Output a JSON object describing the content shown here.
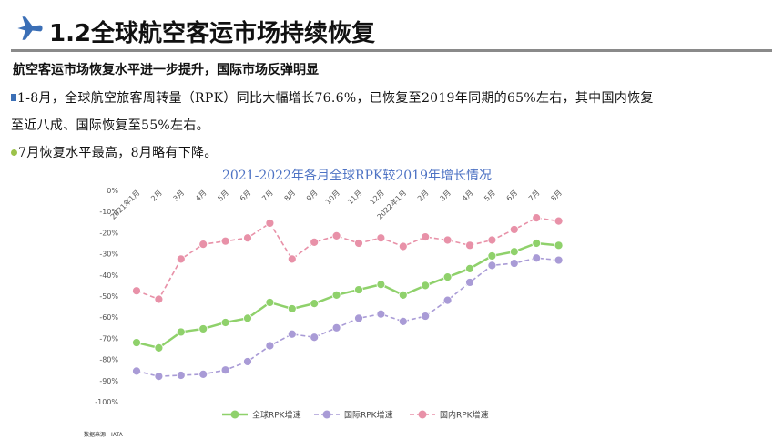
{
  "header": {
    "title": "1.2全球航空客运市场持续恢复",
    "icon": "airplane-icon",
    "accent": "#3b6fb6"
  },
  "subtitle": "航空客运市场恢复水平进一步提升，国际市场反弹明显",
  "paragraphs": [
    {
      "line1": "1-8月，全球航空旅客周转量（RPK）同比大幅增长76.6%，已恢复至2019年同期的65%左右，其中国内恢复",
      "line2": "至近八成、国际恢复至55%左右。"
    },
    {
      "line1": "7月恢复水平最高，8月略有下降。"
    }
  ],
  "source": "数据来源：IATA",
  "chart_data": {
    "type": "line",
    "title": "2021-2022年各月全球RPK较2019年增长情况",
    "categories": [
      "2021年1月",
      "2月",
      "3月",
      "4月",
      "5月",
      "6月",
      "7月",
      "8月",
      "9月",
      "10月",
      "11月",
      "12月",
      "2022年1月",
      "2月",
      "3月",
      "4月",
      "5月",
      "6月",
      "7月",
      "8月"
    ],
    "yticks": [
      "0%",
      "-10%",
      "-20%",
      "-30%",
      "-40%",
      "-50%",
      "-60%",
      "-70%",
      "-80%",
      "-90%",
      "-100%"
    ],
    "ylim": [
      -100,
      0
    ],
    "grid": false,
    "legend_position": "bottom",
    "series": [
      {
        "name": "全球RPK增速",
        "color": "#8fd16b",
        "values": [
          -72,
          -74.5,
          -67,
          -65.5,
          -62.5,
          -60.5,
          -53,
          -56,
          -53.5,
          -49.5,
          -47,
          -44.5,
          -49.5,
          -45,
          -41,
          -37,
          -31,
          -29,
          -25,
          -26
        ]
      },
      {
        "name": "国际RPK增速",
        "color": "#a99bd6",
        "values": [
          -85.5,
          -88,
          -87.5,
          -87,
          -85,
          -81,
          -73.5,
          -68,
          -69.5,
          -65,
          -60.5,
          -58.5,
          -62,
          -59.5,
          -52,
          -43.5,
          -35.5,
          -34.5,
          -32,
          -33
        ]
      },
      {
        "name": "国内RPK增速",
        "color": "#e891a8",
        "values": [
          -47.5,
          -51.5,
          -32.5,
          -25.5,
          -24,
          -22.5,
          -15.5,
          -32.5,
          -24.5,
          -21.5,
          -25,
          -22.5,
          -26.5,
          -22,
          -23.5,
          -26,
          -23.5,
          -18.5,
          -13,
          -14.5
        ]
      }
    ]
  }
}
